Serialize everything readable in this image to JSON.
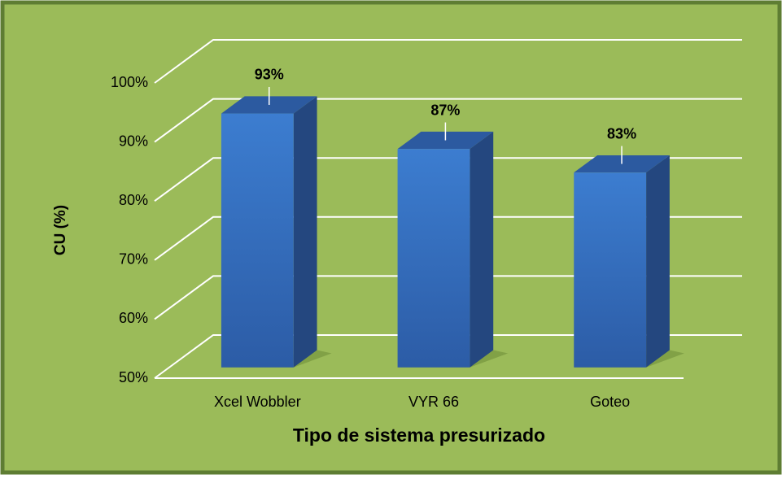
{
  "chart_data": {
    "type": "bar3d",
    "categories": [
      "Xcel Wobbler",
      "VYR 66",
      "Goteo"
    ],
    "values": [
      93,
      87,
      83
    ],
    "value_labels": [
      "93%",
      "87%",
      "83%"
    ],
    "color": "#3a78c8",
    "ylim": [
      50,
      100
    ],
    "yticks": [
      {
        "value": 50,
        "label": "50%"
      },
      {
        "value": 60,
        "label": "60%"
      },
      {
        "value": 70,
        "label": "70%"
      },
      {
        "value": 80,
        "label": "80%"
      },
      {
        "value": 90,
        "label": "90%"
      },
      {
        "value": 100,
        "label": "100%"
      }
    ],
    "y_label": "CU (%)",
    "x_label": "Tipo de sistema presurizado",
    "grid": true
  }
}
